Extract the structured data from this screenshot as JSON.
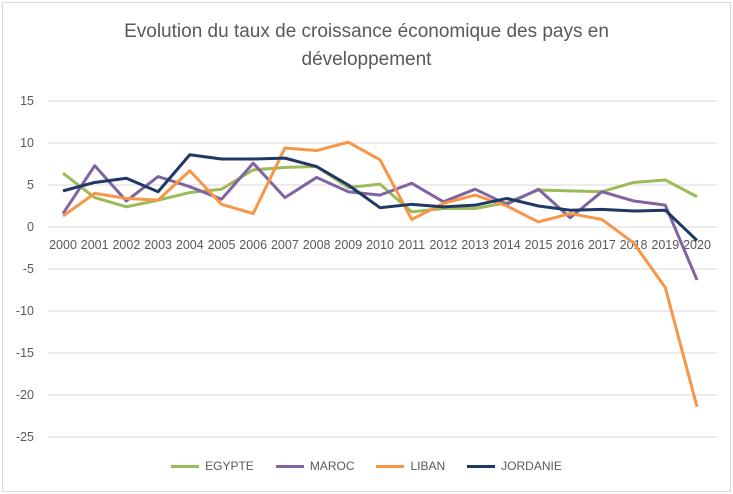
{
  "chart_data": {
    "type": "line",
    "title": "Evolution du taux de croissance économique des pays en développement",
    "title_lines": [
      "Evolution du taux de croissance économique des pays en",
      "développement"
    ],
    "x": [
      "2000",
      "2001",
      "2002",
      "2003",
      "2004",
      "2005",
      "2006",
      "2007",
      "2008",
      "2009",
      "2010",
      "2011",
      "2012",
      "2013",
      "2014",
      "2015",
      "2016",
      "2017",
      "2018",
      "2019",
      "2020"
    ],
    "ylim": [
      -25,
      15
    ],
    "yticks": [
      15,
      10,
      5,
      0,
      -5,
      -10,
      -15,
      -20,
      -25
    ],
    "grid": true,
    "legend_placement": "bottom",
    "series": [
      {
        "name": "EGYPTE",
        "color": "#9BBB59",
        "values": [
          6.4,
          3.5,
          2.4,
          3.2,
          4.1,
          4.5,
          6.8,
          7.1,
          7.2,
          4.7,
          5.1,
          1.8,
          2.2,
          2.2,
          2.9,
          4.4,
          4.3,
          4.2,
          5.3,
          5.6,
          3.6
        ]
      },
      {
        "name": "MAROC",
        "color": "#8064A2",
        "values": [
          1.6,
          7.3,
          3.1,
          6.0,
          4.8,
          3.3,
          7.6,
          3.5,
          5.9,
          4.2,
          3.8,
          5.2,
          3.0,
          4.5,
          2.7,
          4.5,
          1.1,
          4.2,
          3.1,
          2.6,
          -6.3
        ]
      },
      {
        "name": "LIBAN",
        "color": "#F79646",
        "values": [
          1.3,
          4.0,
          3.4,
          3.2,
          6.7,
          2.7,
          1.6,
          9.4,
          9.1,
          10.1,
          8.0,
          0.9,
          2.8,
          3.8,
          2.5,
          0.6,
          1.6,
          0.9,
          -1.9,
          -7.2,
          -21.4
        ]
      },
      {
        "name": "JORDANIE",
        "color": "#1F3864",
        "values": [
          4.3,
          5.3,
          5.8,
          4.2,
          8.6,
          8.1,
          8.1,
          8.2,
          7.2,
          5.0,
          2.3,
          2.7,
          2.4,
          2.6,
          3.4,
          2.5,
          2.0,
          2.1,
          1.9,
          2.0,
          -1.6
        ]
      }
    ]
  }
}
